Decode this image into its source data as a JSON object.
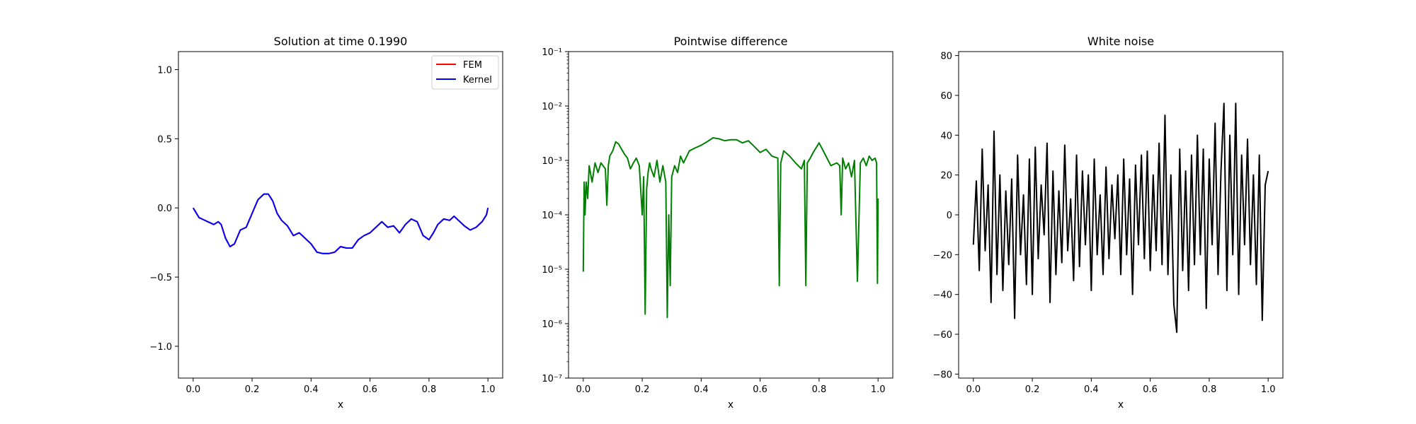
{
  "figure": {
    "background": "#ffffff"
  },
  "chart_data": [
    {
      "id": "solution",
      "type": "line",
      "title": "Solution at time 0.1990",
      "xlabel": "x",
      "ylabel": "",
      "xlim": [
        -0.05,
        1.05
      ],
      "ylim": [
        -1.23,
        1.13
      ],
      "yscale": "linear",
      "xticks": [
        0.0,
        0.2,
        0.4,
        0.6,
        0.8,
        1.0
      ],
      "xtick_labels": [
        "0.0",
        "0.2",
        "0.4",
        "0.6",
        "0.8",
        "1.0"
      ],
      "yticks": [
        -1.0,
        -0.5,
        0.0,
        0.5,
        1.0
      ],
      "ytick_labels": [
        "−1.0",
        "−0.5",
        "0.0",
        "0.5",
        "1.0"
      ],
      "legend": {
        "position": "top-right",
        "entries": [
          {
            "label": "FEM",
            "color": "#ff0000"
          },
          {
            "label": "Kernel",
            "color": "#0000ff"
          }
        ]
      },
      "series": [
        {
          "name": "FEM",
          "color": "#ff0000",
          "x": [
            0.0,
            0.02,
            0.03,
            0.05,
            0.07,
            0.085,
            0.095,
            0.11,
            0.125,
            0.14,
            0.16,
            0.18,
            0.2,
            0.22,
            0.24,
            0.255,
            0.27,
            0.285,
            0.3,
            0.32,
            0.34,
            0.36,
            0.38,
            0.4,
            0.42,
            0.44,
            0.46,
            0.48,
            0.5,
            0.52,
            0.54,
            0.56,
            0.58,
            0.6,
            0.62,
            0.64,
            0.66,
            0.68,
            0.7,
            0.72,
            0.74,
            0.76,
            0.78,
            0.8,
            0.815,
            0.83,
            0.85,
            0.87,
            0.885,
            0.9,
            0.92,
            0.94,
            0.96,
            0.98,
            0.995,
            1.0
          ],
          "y": [
            0.0,
            -0.07,
            -0.08,
            -0.1,
            -0.12,
            -0.1,
            -0.12,
            -0.22,
            -0.28,
            -0.26,
            -0.16,
            -0.14,
            -0.04,
            0.06,
            0.1,
            0.1,
            0.05,
            -0.04,
            -0.09,
            -0.13,
            -0.2,
            -0.18,
            -0.22,
            -0.26,
            -0.32,
            -0.33,
            -0.33,
            -0.32,
            -0.28,
            -0.29,
            -0.29,
            -0.23,
            -0.2,
            -0.18,
            -0.14,
            -0.1,
            -0.14,
            -0.13,
            -0.18,
            -0.12,
            -0.08,
            -0.1,
            -0.2,
            -0.23,
            -0.18,
            -0.12,
            -0.08,
            -0.09,
            -0.06,
            -0.09,
            -0.13,
            -0.16,
            -0.14,
            -0.1,
            -0.05,
            0.0
          ]
        },
        {
          "name": "Kernel",
          "color": "#0000ff",
          "x": [
            0.0,
            0.02,
            0.03,
            0.05,
            0.07,
            0.085,
            0.095,
            0.11,
            0.125,
            0.14,
            0.16,
            0.18,
            0.2,
            0.22,
            0.24,
            0.255,
            0.27,
            0.285,
            0.3,
            0.32,
            0.34,
            0.36,
            0.38,
            0.4,
            0.42,
            0.44,
            0.46,
            0.48,
            0.5,
            0.52,
            0.54,
            0.56,
            0.58,
            0.6,
            0.62,
            0.64,
            0.66,
            0.68,
            0.7,
            0.72,
            0.74,
            0.76,
            0.78,
            0.8,
            0.815,
            0.83,
            0.85,
            0.87,
            0.885,
            0.9,
            0.92,
            0.94,
            0.96,
            0.98,
            0.995,
            1.0
          ],
          "y": [
            0.0,
            -0.07,
            -0.08,
            -0.1,
            -0.12,
            -0.1,
            -0.12,
            -0.22,
            -0.28,
            -0.26,
            -0.16,
            -0.14,
            -0.04,
            0.06,
            0.1,
            0.1,
            0.05,
            -0.04,
            -0.09,
            -0.13,
            -0.2,
            -0.18,
            -0.22,
            -0.26,
            -0.32,
            -0.33,
            -0.33,
            -0.32,
            -0.28,
            -0.29,
            -0.29,
            -0.23,
            -0.2,
            -0.18,
            -0.14,
            -0.1,
            -0.14,
            -0.13,
            -0.18,
            -0.12,
            -0.08,
            -0.1,
            -0.2,
            -0.23,
            -0.18,
            -0.12,
            -0.08,
            -0.09,
            -0.06,
            -0.09,
            -0.13,
            -0.16,
            -0.14,
            -0.1,
            -0.05,
            0.0
          ]
        }
      ]
    },
    {
      "id": "difference",
      "type": "line",
      "title": "Pointwise difference",
      "xlabel": "x",
      "ylabel": "",
      "xlim": [
        -0.05,
        1.05
      ],
      "ylim": [
        1e-07,
        0.1
      ],
      "yscale": "log",
      "xticks": [
        0.0,
        0.2,
        0.4,
        0.6,
        0.8,
        1.0
      ],
      "xtick_labels": [
        "0.0",
        "0.2",
        "0.4",
        "0.6",
        "0.8",
        "1.0"
      ],
      "yticks": [
        1e-07,
        1e-06,
        1e-05,
        0.0001,
        0.001,
        0.01,
        0.1
      ],
      "ytick_labels": [
        "10⁻⁷",
        "10⁻⁶",
        "10⁻⁵",
        "10⁻⁴",
        "10⁻³",
        "10⁻²",
        "10⁻¹"
      ],
      "series": [
        {
          "name": "difference",
          "color": "#008000",
          "x": [
            0.0,
            0.003,
            0.006,
            0.01,
            0.015,
            0.02,
            0.03,
            0.04,
            0.05,
            0.06,
            0.075,
            0.08,
            0.085,
            0.09,
            0.1,
            0.11,
            0.12,
            0.13,
            0.14,
            0.15,
            0.16,
            0.17,
            0.18,
            0.19,
            0.2,
            0.205,
            0.21,
            0.215,
            0.22,
            0.225,
            0.23,
            0.24,
            0.25,
            0.26,
            0.27,
            0.28,
            0.285,
            0.29,
            0.295,
            0.3,
            0.31,
            0.32,
            0.33,
            0.34,
            0.36,
            0.38,
            0.4,
            0.42,
            0.44,
            0.46,
            0.48,
            0.5,
            0.52,
            0.54,
            0.56,
            0.58,
            0.6,
            0.62,
            0.64,
            0.66,
            0.665,
            0.67,
            0.68,
            0.7,
            0.72,
            0.74,
            0.75,
            0.755,
            0.76,
            0.77,
            0.78,
            0.8,
            0.82,
            0.84,
            0.86,
            0.87,
            0.875,
            0.88,
            0.89,
            0.9,
            0.91,
            0.92,
            0.93,
            0.94,
            0.95,
            0.96,
            0.97,
            0.98,
            0.99,
            0.995,
            0.998,
            1.0
          ],
          "y": [
            9e-06,
            0.0004,
            0.0001,
            0.0004,
            0.0002,
            0.0008,
            0.0004,
            0.0009,
            0.0006,
            0.0009,
            0.0007,
            0.00015,
            0.0008,
            0.0012,
            0.0015,
            0.0022,
            0.002,
            0.0016,
            0.0013,
            0.0011,
            0.0007,
            0.0009,
            0.0011,
            0.0008,
            0.0001,
            0.0005,
            1.5e-06,
            0.0003,
            0.0006,
            0.0009,
            0.0007,
            0.0005,
            0.001,
            0.0004,
            0.0008,
            0.0004,
            1.3e-06,
            0.0001,
            5e-06,
            0.0005,
            0.0008,
            0.0006,
            0.0012,
            0.0009,
            0.0015,
            0.0017,
            0.0019,
            0.0022,
            0.0026,
            0.0025,
            0.0023,
            0.0024,
            0.0024,
            0.0021,
            0.0023,
            0.0018,
            0.0014,
            0.0016,
            0.0012,
            0.0011,
            5e-06,
            0.0009,
            0.0015,
            0.0012,
            0.0009,
            0.0007,
            0.001,
            5e-06,
            0.0009,
            0.0011,
            0.0014,
            0.0021,
            0.0013,
            0.0008,
            0.0009,
            0.0008,
            0.0001,
            0.0011,
            0.0007,
            0.0009,
            0.0005,
            0.001,
            6e-06,
            0.0009,
            0.0011,
            0.0008,
            0.0012,
            0.001,
            0.0011,
            0.0009,
            5.5e-06,
            0.0002
          ]
        }
      ]
    },
    {
      "id": "noise",
      "type": "line",
      "title": "White noise",
      "xlabel": "x",
      "ylabel": "",
      "xlim": [
        -0.05,
        1.05
      ],
      "ylim": [
        -82,
        82
      ],
      "yscale": "linear",
      "xticks": [
        0.0,
        0.2,
        0.4,
        0.6,
        0.8,
        1.0
      ],
      "xtick_labels": [
        "0.0",
        "0.2",
        "0.4",
        "0.6",
        "0.8",
        "1.0"
      ],
      "yticks": [
        -80,
        -60,
        -40,
        -20,
        0,
        20,
        40,
        60,
        80
      ],
      "ytick_labels": [
        "−80",
        "−60",
        "−40",
        "−20",
        "0",
        "20",
        "40",
        "60",
        "80"
      ],
      "series": [
        {
          "name": "noise",
          "color": "#000000",
          "x": [
            0.0,
            0.01,
            0.02,
            0.03,
            0.04,
            0.05,
            0.06,
            0.07,
            0.08,
            0.09,
            0.1,
            0.11,
            0.12,
            0.13,
            0.14,
            0.15,
            0.16,
            0.17,
            0.18,
            0.19,
            0.2,
            0.21,
            0.22,
            0.23,
            0.24,
            0.25,
            0.26,
            0.27,
            0.28,
            0.29,
            0.3,
            0.31,
            0.32,
            0.33,
            0.34,
            0.35,
            0.36,
            0.37,
            0.38,
            0.39,
            0.4,
            0.41,
            0.42,
            0.43,
            0.44,
            0.45,
            0.46,
            0.47,
            0.48,
            0.49,
            0.5,
            0.51,
            0.52,
            0.53,
            0.54,
            0.55,
            0.56,
            0.57,
            0.58,
            0.59,
            0.6,
            0.61,
            0.62,
            0.63,
            0.64,
            0.65,
            0.66,
            0.67,
            0.68,
            0.69,
            0.7,
            0.71,
            0.72,
            0.73,
            0.74,
            0.75,
            0.76,
            0.77,
            0.78,
            0.79,
            0.8,
            0.81,
            0.82,
            0.83,
            0.84,
            0.85,
            0.86,
            0.87,
            0.88,
            0.89,
            0.9,
            0.91,
            0.92,
            0.93,
            0.94,
            0.95,
            0.96,
            0.97,
            0.98,
            0.99,
            1.0
          ],
          "y": [
            -15,
            17,
            -28,
            33,
            -18,
            15,
            -44,
            42,
            -30,
            20,
            -38,
            12,
            -25,
            18,
            -52,
            30,
            -20,
            10,
            -35,
            28,
            -40,
            34,
            -22,
            15,
            -10,
            36,
            -44,
            22,
            -30,
            12,
            -24,
            35,
            -18,
            8,
            -33,
            30,
            -26,
            22,
            -15,
            20,
            -38,
            28,
            -20,
            10,
            -30,
            24,
            -22,
            15,
            -12,
            20,
            -30,
            28,
            -20,
            18,
            -40,
            25,
            -15,
            30,
            -22,
            32,
            -28,
            20,
            -18,
            36,
            -25,
            50,
            -30,
            20,
            -45,
            -59,
            33,
            -28,
            22,
            -38,
            30,
            -25,
            40,
            -20,
            33,
            -47,
            28,
            -15,
            46,
            -30,
            22,
            56,
            -38,
            40,
            -20,
            56,
            -40,
            30,
            -15,
            38,
            -25,
            20,
            -35,
            30,
            -53,
            15,
            22
          ]
        }
      ]
    }
  ]
}
